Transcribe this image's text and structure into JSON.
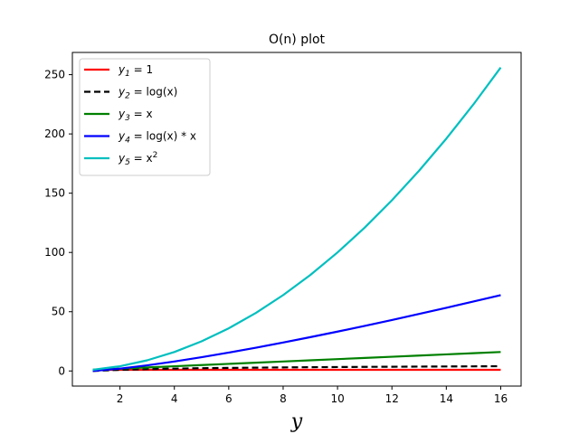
{
  "chart_data": {
    "type": "line",
    "title": "O(n) plot",
    "xlabel": "y",
    "ylabel": "",
    "xlim": [
      0.25,
      16.75
    ],
    "ylim": [
      -12.75,
      268.75
    ],
    "x_ticks": [
      2,
      4,
      6,
      8,
      10,
      12,
      14,
      16
    ],
    "y_ticks": [
      0,
      50,
      100,
      150,
      200,
      250
    ],
    "grid": false,
    "legend_position": "top-left",
    "x": [
      1,
      2,
      3,
      4,
      5,
      6,
      7,
      8,
      9,
      10,
      11,
      12,
      13,
      14,
      15,
      16
    ],
    "series": [
      {
        "name": "y1 = 1",
        "name_parts": {
          "main": "y",
          "sub": "1",
          "rhs": " = 1",
          "sup": ""
        },
        "color": "#ff0000",
        "style": "solid",
        "values": [
          1,
          1,
          1,
          1,
          1,
          1,
          1,
          1,
          1,
          1,
          1,
          1,
          1,
          1,
          1,
          1
        ]
      },
      {
        "name": "y2 = log(x)",
        "name_parts": {
          "main": "y",
          "sub": "2",
          "rhs": " = log(x)",
          "sup": ""
        },
        "color": "#000000",
        "style": "dashed",
        "values": [
          0,
          1,
          1.585,
          2,
          2.322,
          2.585,
          2.807,
          3,
          3.17,
          3.322,
          3.459,
          3.585,
          3.7,
          3.807,
          3.907,
          4
        ]
      },
      {
        "name": "y3 = x",
        "name_parts": {
          "main": "y",
          "sub": "3",
          "rhs": " = x",
          "sup": ""
        },
        "color": "#008000",
        "style": "solid",
        "values": [
          1,
          2,
          3,
          4,
          5,
          6,
          7,
          8,
          9,
          10,
          11,
          12,
          13,
          14,
          15,
          16
        ]
      },
      {
        "name": "y4 = log(x) * x",
        "name_parts": {
          "main": "y",
          "sub": "4",
          "rhs": " = log(x) * x",
          "sup": ""
        },
        "color": "#0000ff",
        "style": "solid",
        "values": [
          0,
          2,
          4.755,
          8,
          11.61,
          15.51,
          19.65,
          24,
          28.53,
          33.22,
          38.05,
          43.02,
          48.11,
          53.3,
          58.6,
          64
        ]
      },
      {
        "name": "y5 = x2",
        "name_parts": {
          "main": "y",
          "sub": "5",
          "rhs": " = x",
          "sup": "2"
        },
        "color": "#00bfbf",
        "style": "solid",
        "values": [
          1,
          4,
          9,
          16,
          25,
          36,
          49,
          64,
          81,
          100,
          121,
          144,
          169,
          196,
          225,
          256
        ]
      }
    ]
  }
}
